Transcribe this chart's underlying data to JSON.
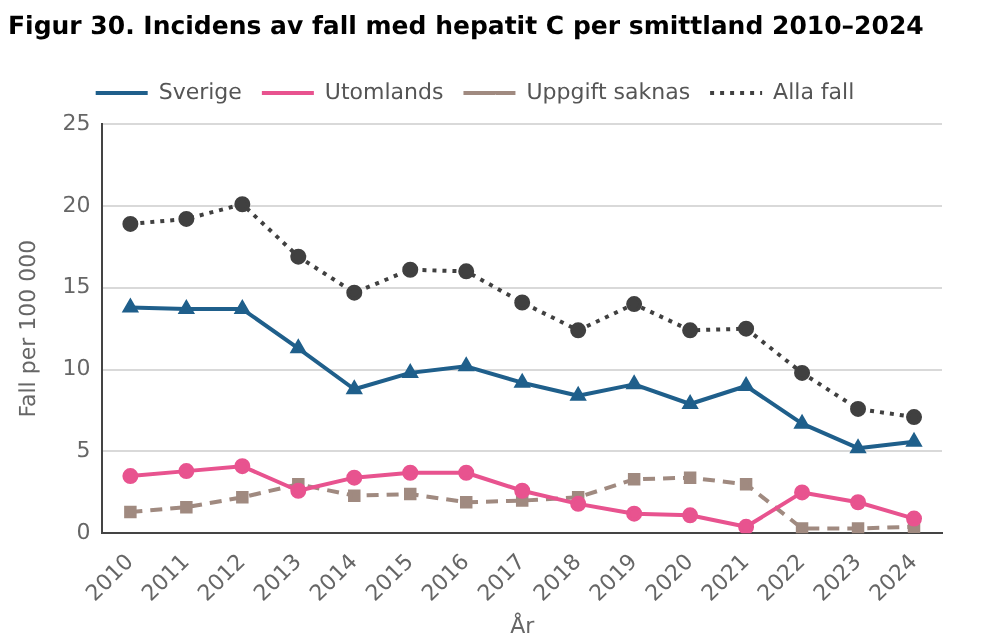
{
  "chart_data": {
    "type": "line",
    "title": "Figur 30. Incidens av fall med hepatit C per smittland 2010–2024",
    "xlabel": "År",
    "ylabel": "Fall per 100 000",
    "categories": [
      "2010",
      "2011",
      "2012",
      "2013",
      "2014",
      "2015",
      "2016",
      "2017",
      "2018",
      "2019",
      "2020",
      "2021",
      "2022",
      "2023",
      "2024"
    ],
    "series": [
      {
        "name": "Sverige",
        "color": "#1f5f8b",
        "marker": "triangle",
        "line_style": "solid",
        "values": [
          13.8,
          13.7,
          13.7,
          11.3,
          8.8,
          9.8,
          10.2,
          9.2,
          8.4,
          9.1,
          7.9,
          9.0,
          6.7,
          5.2,
          5.6
        ]
      },
      {
        "name": "Utomlands",
        "color": "#e8538f",
        "marker": "circle",
        "line_style": "solid",
        "values": [
          3.5,
          3.8,
          4.1,
          2.6,
          3.4,
          3.7,
          3.7,
          2.6,
          1.8,
          1.2,
          1.1,
          0.4,
          2.5,
          1.9,
          0.9
        ]
      },
      {
        "name": "Uppgift saknas",
        "color": "#a08a80",
        "marker": "square",
        "line_style": "dashed",
        "values": [
          1.3,
          1.6,
          2.2,
          3.0,
          2.3,
          2.4,
          1.9,
          2.0,
          2.2,
          3.3,
          3.4,
          3.0,
          0.3,
          0.3,
          0.4
        ]
      },
      {
        "name": "Alla fall",
        "color": "#404040",
        "marker": "circle",
        "line_style": "dotted",
        "values": [
          18.9,
          19.2,
          20.1,
          16.9,
          14.7,
          16.1,
          16.0,
          14.1,
          12.4,
          14.0,
          12.4,
          12.5,
          9.8,
          7.6,
          7.1
        ]
      }
    ],
    "ylim": [
      0,
      25
    ],
    "yticks": [
      0,
      5,
      10,
      15,
      20,
      25
    ],
    "grid": "y",
    "legend": "top"
  }
}
